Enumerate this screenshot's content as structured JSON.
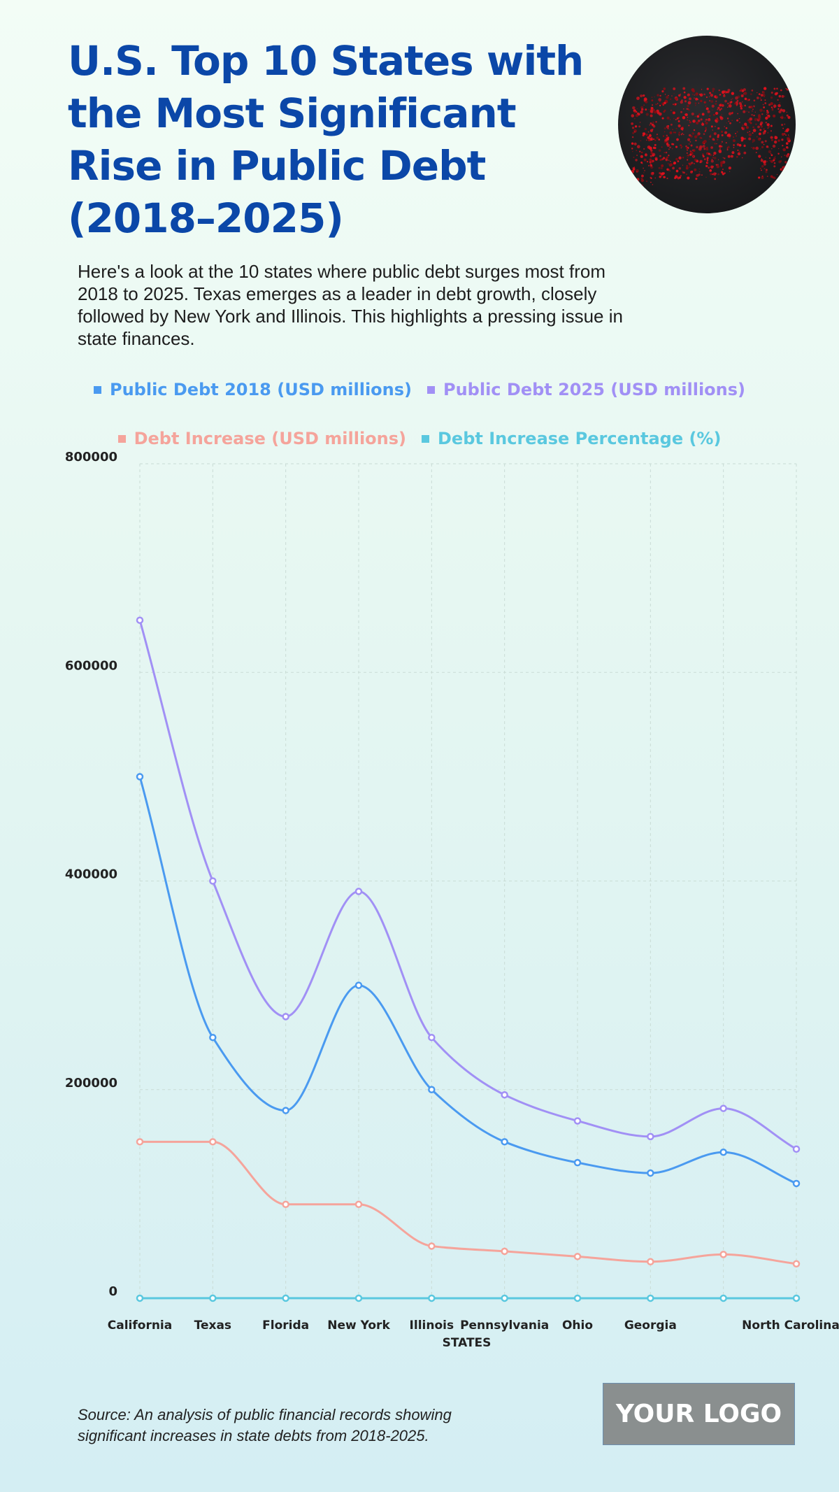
{
  "header": {
    "title": "U.S. Top 10 States with the Most Significant Rise in Public Debt (2018–2025)",
    "description": "Here's a look at the 10 states where public debt surges most from 2018 to 2025. Texas emerges as a leader in debt growth, closely followed by New York and Illinois. This highlights a pressing issue in state finances.",
    "image_icon": "us-map-icon"
  },
  "chart_data": {
    "type": "line",
    "title": "U.S. Top 10 States with the Most Significant Rise in Public Debt (2018–2025)",
    "xlabel": "STATES",
    "ylabel": "",
    "ylim": [
      0,
      800000
    ],
    "yticks": [
      "0",
      "200000",
      "400000",
      "600000",
      "800000"
    ],
    "grid": true,
    "legend_position": "top-center",
    "categories": [
      "California",
      "Texas",
      "Florida",
      "New York",
      "Illinois",
      "Pennsylvania",
      "Ohio",
      "Georgia",
      "",
      "North Carolina"
    ],
    "series": [
      {
        "name": "Public Debt 2018 (USD millions)",
        "color": "#4a9af0",
        "values": [
          500000,
          250000,
          180000,
          300000,
          200000,
          150000,
          130000,
          120000,
          140000,
          110000
        ]
      },
      {
        "name": "Public Debt 2025 (USD millions)",
        "color": "#a190f5",
        "values": [
          650000,
          400000,
          270000,
          390000,
          250000,
          195000,
          170000,
          155000,
          182000,
          143000
        ]
      },
      {
        "name": "Debt Increase (USD millions)",
        "color": "#f5a49b",
        "values": [
          150000,
          150000,
          90000,
          90000,
          50000,
          45000,
          40000,
          35000,
          42000,
          33000
        ]
      },
      {
        "name": "Debt Increase Percentage (%)",
        "color": "#5ac8df",
        "values": [
          30,
          60,
          50,
          30,
          25,
          30,
          31,
          29,
          30,
          30
        ]
      }
    ]
  },
  "footer": {
    "source": "Source: An analysis of public financial records showing significant increases in state debts from 2018-2025.",
    "logo": "YOUR LOGO"
  }
}
